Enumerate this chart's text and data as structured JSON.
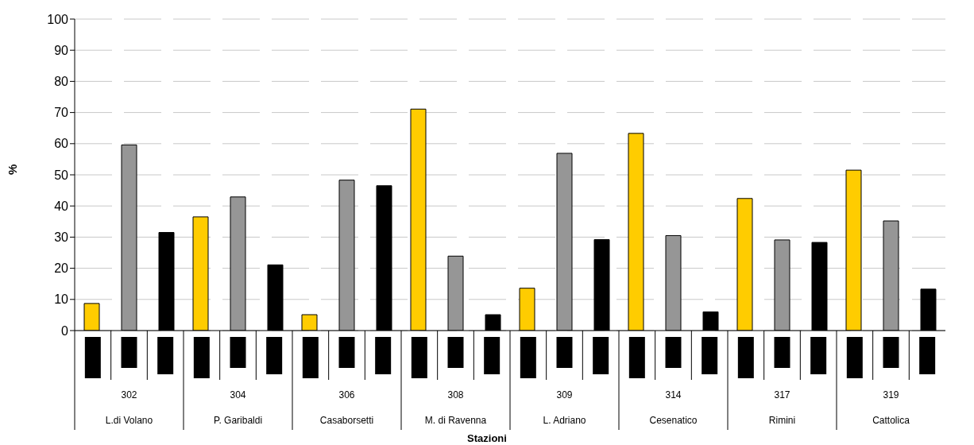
{
  "chart_data": {
    "type": "bar",
    "annotations": [
      "Stazioni"
    ],
    "ylabel": "%",
    "categories": [
      "302\nL.di Volano",
      "304\nP. Garibaldi",
      "306\nCasaborsetti",
      "308\nM. di Ravenna",
      "309\nL. Adriano",
      "314\nCesenatico",
      "317\nRimini",
      "319\nCattolica"
    ],
    "series": [
      {
        "color": "#ffcc00",
        "values": [
          8.7,
          36.5,
          5.1,
          71.1,
          13.6,
          63.3,
          42.4,
          51.5
        ]
      },
      {
        "color": "#969696",
        "values": [
          59.6,
          42.9,
          48.3,
          23.9,
          56.9,
          30.5,
          29.1,
          35.2
        ]
      },
      {
        "color": "#000000",
        "values": [
          31.5,
          21.1,
          46.5,
          5.1,
          29.2,
          6.0,
          28.3,
          13.3
        ]
      }
    ],
    "ylim": [
      0,
      100
    ],
    "yticks": [
      0,
      10,
      20,
      30,
      40,
      50,
      60,
      70,
      80,
      90,
      100
    ],
    "grid": "y",
    "legend": false
  }
}
